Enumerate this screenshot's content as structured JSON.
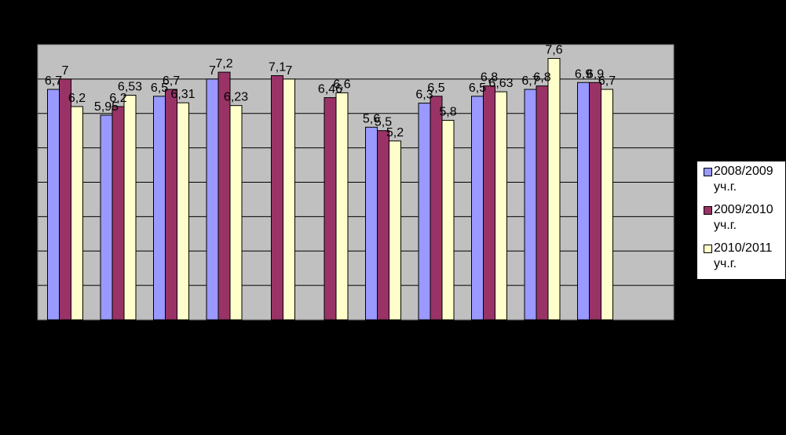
{
  "chart_data": {
    "type": "bar",
    "title": "",
    "xlabel": "",
    "ylabel": "",
    "ylim": [
      0,
      8
    ],
    "grid": true,
    "legend_position": "right",
    "categories": [
      "",
      "",
      "",
      "",
      "",
      "",
      "",
      "",
      "",
      "",
      "",
      ""
    ],
    "series": [
      {
        "name": "2008/2009 уч.г.",
        "color": "#9999ff",
        "values": [
          6.7,
          5.95,
          6.5,
          7,
          null,
          null,
          5.6,
          6.3,
          6.5,
          6.7,
          6.9,
          null
        ],
        "labels": [
          "6,7",
          "5,95",
          "6,5",
          "7",
          "",
          "",
          "5,6",
          "6,3",
          "6,5",
          "6,7",
          "6,9",
          ""
        ]
      },
      {
        "name": "2009/2010 уч.г.",
        "color": "#993366",
        "values": [
          7,
          6.2,
          6.7,
          7.2,
          7.1,
          6.46,
          5.5,
          6.5,
          6.8,
          6.8,
          6.9,
          null
        ],
        "labels": [
          "7",
          "6,2",
          "6,7",
          "7,2",
          "7,1",
          "6,46",
          "5,5",
          "6,5",
          "6,8",
          "6,8",
          "6,9",
          ""
        ]
      },
      {
        "name": "2010/2011 уч.г.",
        "color": "#ffffcc",
        "values": [
          6.2,
          6.53,
          6.31,
          6.23,
          7,
          6.6,
          5.2,
          5.8,
          6.63,
          7.6,
          6.7,
          null
        ],
        "labels": [
          "6,2",
          "6,53",
          "6,31",
          "6,23",
          "7",
          "6,6",
          "5,2",
          "5,8",
          "6,63",
          "7,6",
          "6,7",
          ""
        ]
      }
    ]
  }
}
